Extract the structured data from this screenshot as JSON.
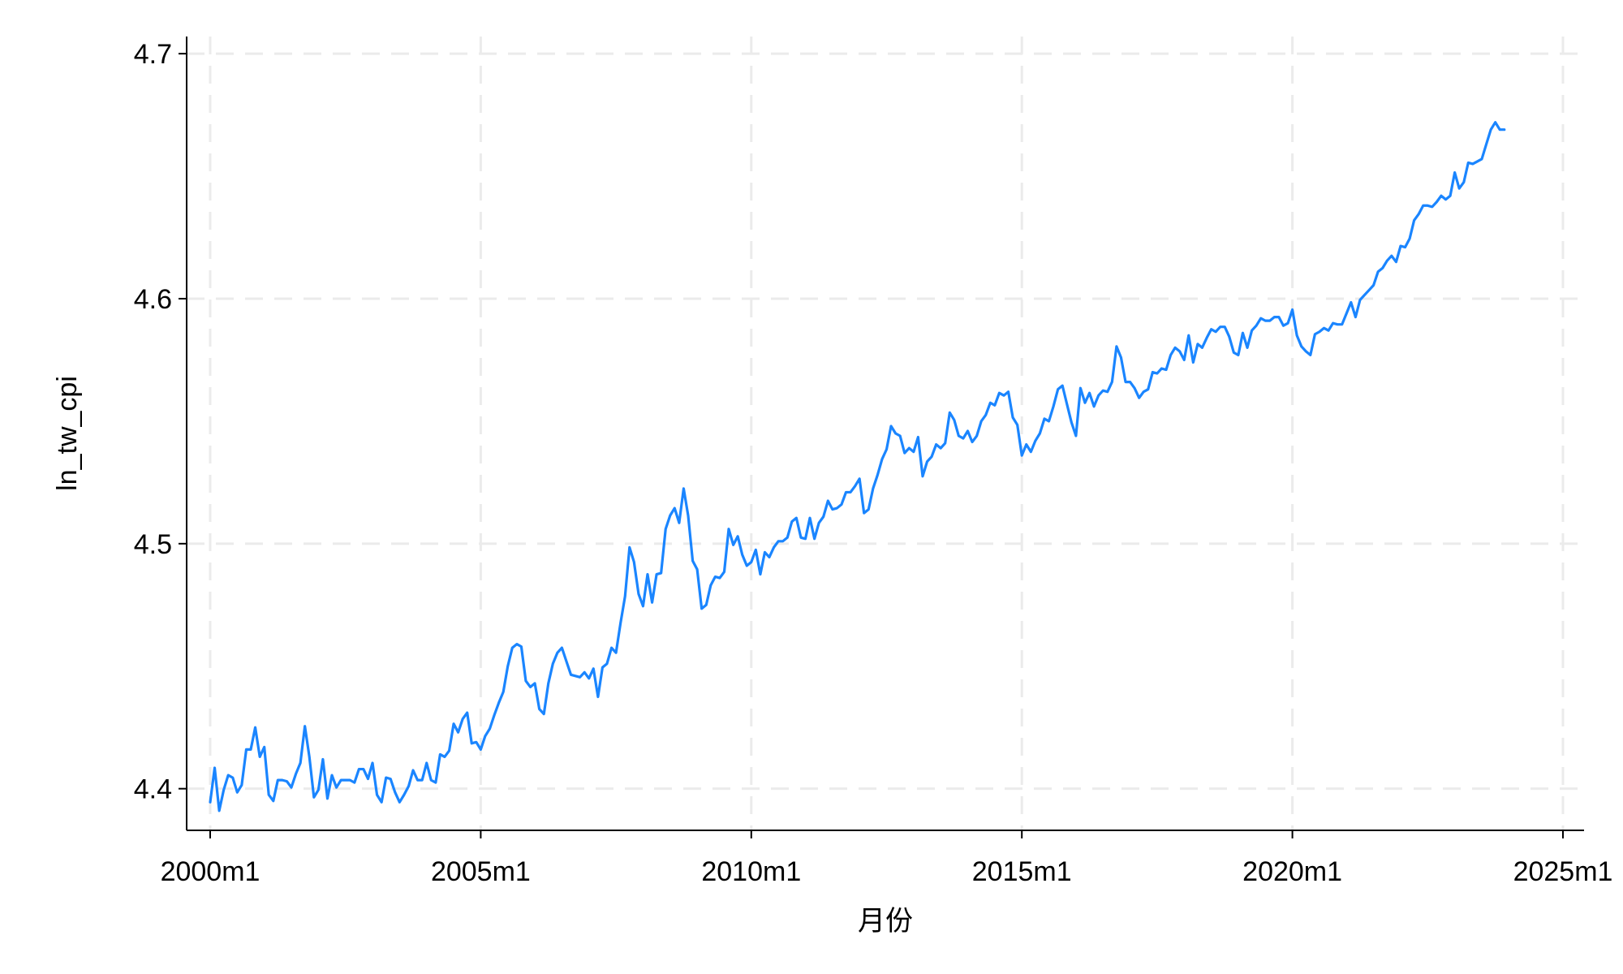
{
  "chart_data": {
    "type": "line",
    "title": "",
    "xlabel": "月份",
    "ylabel": "ln_tw_cpi",
    "x_ticks": [
      "2000m1",
      "2005m1",
      "2010m1",
      "2015m1",
      "2020m1",
      "2025m1"
    ],
    "y_ticks": [
      "4.4",
      "4.5",
      "4.6",
      "4.7"
    ],
    "xlim": [
      2000.0,
      2025.0
    ],
    "ylim": [
      4.383,
      4.707
    ],
    "grid": true,
    "legend": "none",
    "colors": {
      "series": "#1a85ff",
      "grid": "#ebebeb",
      "axis": "#000000"
    },
    "series": [
      {
        "x": [
          2000.0,
          2000.083,
          2000.167,
          2000.25,
          2000.333,
          2000.417,
          2000.5,
          2000.583,
          2000.667,
          2000.75,
          2000.833,
          2000.917,
          2001.0,
          2001.083,
          2001.167,
          2001.25,
          2001.333,
          2001.417,
          2001.5,
          2001.583,
          2001.667,
          2001.75,
          2001.833,
          2001.917,
          2002.0,
          2002.083,
          2002.167,
          2002.25,
          2002.333,
          2002.417,
          2002.5,
          2002.583,
          2002.667,
          2002.75,
          2002.833,
          2002.917,
          2003.0,
          2003.083,
          2003.167,
          2003.25,
          2003.333,
          2003.417,
          2003.5,
          2003.583,
          2003.667,
          2003.75,
          2003.833,
          2003.917,
          2004.0,
          2004.083,
          2004.167,
          2004.25,
          2004.333,
          2004.417,
          2004.5,
          2004.583,
          2004.667,
          2004.75,
          2004.833,
          2004.917,
          2005.0,
          2005.083,
          2005.167,
          2005.25,
          2005.333,
          2005.417,
          2005.5,
          2005.583,
          2005.667,
          2005.75,
          2005.833,
          2005.917,
          2006.0,
          2006.083,
          2006.167,
          2006.25,
          2006.333,
          2006.417,
          2006.5,
          2006.583,
          2006.667,
          2006.75,
          2006.833,
          2006.917,
          2007.0,
          2007.083,
          2007.167,
          2007.25,
          2007.333,
          2007.417,
          2007.5,
          2007.583,
          2007.667,
          2007.75,
          2007.833,
          2007.917,
          2008.0,
          2008.083,
          2008.167,
          2008.25,
          2008.333,
          2008.417,
          2008.5,
          2008.583,
          2008.667,
          2008.75,
          2008.833,
          2008.917,
          2009.0,
          2009.083,
          2009.167,
          2009.25,
          2009.333,
          2009.417,
          2009.5,
          2009.583,
          2009.667,
          2009.75,
          2009.833,
          2009.917,
          2010.0,
          2010.083,
          2010.167,
          2010.25,
          2010.333,
          2010.417,
          2010.5,
          2010.583,
          2010.667,
          2010.75,
          2010.833,
          2010.917,
          2011.0,
          2011.083,
          2011.167,
          2011.25,
          2011.333,
          2011.417,
          2011.5,
          2011.583,
          2011.667,
          2011.75,
          2011.833,
          2011.917,
          2012.0,
          2012.083,
          2012.167,
          2012.25,
          2012.333,
          2012.417,
          2012.5,
          2012.583,
          2012.667,
          2012.75,
          2012.833,
          2012.917,
          2013.0,
          2013.083,
          2013.167,
          2013.25,
          2013.333,
          2013.417,
          2013.5,
          2013.583,
          2013.667,
          2013.75,
          2013.833,
          2013.917,
          2014.0,
          2014.083,
          2014.167,
          2014.25,
          2014.333,
          2014.417,
          2014.5,
          2014.583,
          2014.667,
          2014.75,
          2014.833,
          2014.917,
          2015.0,
          2015.083,
          2015.167,
          2015.25,
          2015.333,
          2015.417,
          2015.5,
          2015.583,
          2015.667,
          2015.75,
          2015.833,
          2015.917,
          2016.0,
          2016.083,
          2016.167,
          2016.25,
          2016.333,
          2016.417,
          2016.5,
          2016.583,
          2016.667,
          2016.75,
          2016.833,
          2016.917,
          2017.0,
          2017.083,
          2017.167,
          2017.25,
          2017.333,
          2017.417,
          2017.5,
          2017.583,
          2017.667,
          2017.75,
          2017.833,
          2017.917,
          2018.0,
          2018.083,
          2018.167,
          2018.25,
          2018.333,
          2018.417,
          2018.5,
          2018.583,
          2018.667,
          2018.75,
          2018.833,
          2018.917,
          2019.0,
          2019.083,
          2019.167,
          2019.25,
          2019.333,
          2019.417,
          2019.5,
          2019.583,
          2019.667,
          2019.75,
          2019.833,
          2019.917,
          2020.0,
          2020.083,
          2020.167,
          2020.25,
          2020.333,
          2020.417,
          2020.5,
          2020.583,
          2020.667,
          2020.75,
          2020.833,
          2020.917,
          2021.0,
          2021.083,
          2021.167,
          2021.25,
          2021.333,
          2021.417,
          2021.5,
          2021.583,
          2021.667,
          2021.75,
          2021.833,
          2021.917,
          2022.0,
          2022.083,
          2022.167,
          2022.25,
          2022.333,
          2022.417,
          2022.5,
          2022.583,
          2022.667,
          2022.75,
          2022.833,
          2022.917,
          2023.0,
          2023.083,
          2023.167,
          2023.25,
          2023.333,
          2023.417,
          2023.5,
          2023.583,
          2023.667,
          2023.75,
          2023.833,
          2023.917
        ],
        "y": [
          4.3945,
          4.4085,
          4.391,
          4.3995,
          4.4055,
          4.4045,
          4.3985,
          4.4015,
          4.416,
          4.416,
          4.425,
          4.413,
          4.417,
          4.3975,
          4.395,
          4.4035,
          4.4035,
          4.403,
          4.4005,
          4.406,
          4.4105,
          4.4255,
          4.413,
          4.3965,
          4.3995,
          4.412,
          4.396,
          4.4055,
          4.4005,
          4.4035,
          4.4035,
          4.4035,
          4.4025,
          4.408,
          4.408,
          4.404,
          4.4105,
          4.3975,
          4.3945,
          4.4045,
          4.404,
          4.3985,
          4.3945,
          4.3975,
          4.401,
          4.4075,
          4.4035,
          4.4035,
          4.4105,
          4.4035,
          4.4025,
          4.414,
          4.413,
          4.4155,
          4.4265,
          4.423,
          4.4285,
          4.431,
          4.4185,
          4.419,
          4.416,
          4.4215,
          4.4245,
          4.43,
          4.435,
          4.4395,
          4.45,
          4.4575,
          4.459,
          4.458,
          4.444,
          4.4415,
          4.443,
          4.4325,
          4.4305,
          4.443,
          4.451,
          4.4555,
          4.4575,
          4.452,
          4.4465,
          4.446,
          4.4455,
          4.4475,
          4.445,
          4.449,
          4.4375,
          4.4495,
          4.451,
          4.4575,
          4.4555,
          4.4675,
          4.4785,
          4.4985,
          4.4925,
          4.4795,
          4.4745,
          4.4875,
          4.476,
          4.4875,
          4.488,
          4.506,
          4.5115,
          4.5145,
          4.5085,
          4.5225,
          4.5115,
          4.493,
          4.4895,
          4.4735,
          4.475,
          4.483,
          4.4865,
          4.486,
          4.4885,
          4.506,
          4.4995,
          4.503,
          4.4955,
          4.491,
          4.4925,
          4.4975,
          4.4875,
          4.4965,
          4.4945,
          4.4985,
          4.501,
          4.501,
          4.5025,
          4.509,
          4.5105,
          4.5025,
          4.502,
          4.5105,
          4.502,
          4.5085,
          4.511,
          4.5175,
          4.514,
          4.5145,
          4.516,
          4.521,
          4.521,
          4.5235,
          4.5265,
          4.5125,
          4.514,
          4.5225,
          4.528,
          4.5345,
          4.5385,
          4.548,
          4.545,
          4.544,
          4.537,
          4.539,
          4.5375,
          4.5435,
          4.5275,
          4.5335,
          4.5355,
          4.5405,
          4.539,
          4.541,
          4.5535,
          4.5505,
          4.544,
          4.543,
          4.546,
          4.5415,
          4.544,
          4.55,
          4.5525,
          4.5575,
          4.5565,
          4.5615,
          4.5605,
          4.562,
          4.5515,
          4.5485,
          4.536,
          4.5405,
          4.5375,
          4.542,
          4.545,
          4.551,
          4.55,
          4.556,
          4.563,
          4.5645,
          4.557,
          4.5495,
          4.544,
          4.5635,
          4.5575,
          4.5615,
          4.556,
          4.5605,
          4.5625,
          4.562,
          4.566,
          4.5805,
          4.576,
          4.566,
          4.566,
          4.5635,
          4.5595,
          4.562,
          4.563,
          4.57,
          4.5695,
          4.5715,
          4.571,
          4.577,
          4.58,
          4.5785,
          4.575,
          4.585,
          4.574,
          4.5815,
          4.58,
          4.584,
          4.5875,
          4.5865,
          4.5885,
          4.5885,
          4.5845,
          4.578,
          4.577,
          4.586,
          4.58,
          4.587,
          4.589,
          4.592,
          4.591,
          4.591,
          4.5925,
          4.5925,
          4.589,
          4.59,
          4.5955,
          4.585,
          4.5805,
          4.5785,
          4.577,
          4.5855,
          4.5865,
          4.588,
          4.587,
          4.59,
          4.5895,
          4.5895,
          4.594,
          4.5985,
          4.5925,
          4.5995,
          4.6015,
          4.6035,
          4.6055,
          4.611,
          4.6125,
          4.6155,
          4.6175,
          4.615,
          4.6215,
          4.621,
          4.6245,
          4.632,
          4.6345,
          4.638,
          4.638,
          4.6375,
          4.6395,
          4.642,
          4.6405,
          4.642,
          4.6515,
          4.645,
          4.6475,
          4.6555,
          4.655,
          4.656,
          4.657,
          4.663,
          4.669,
          4.672,
          4.669,
          4.669
        ]
      }
    ]
  }
}
